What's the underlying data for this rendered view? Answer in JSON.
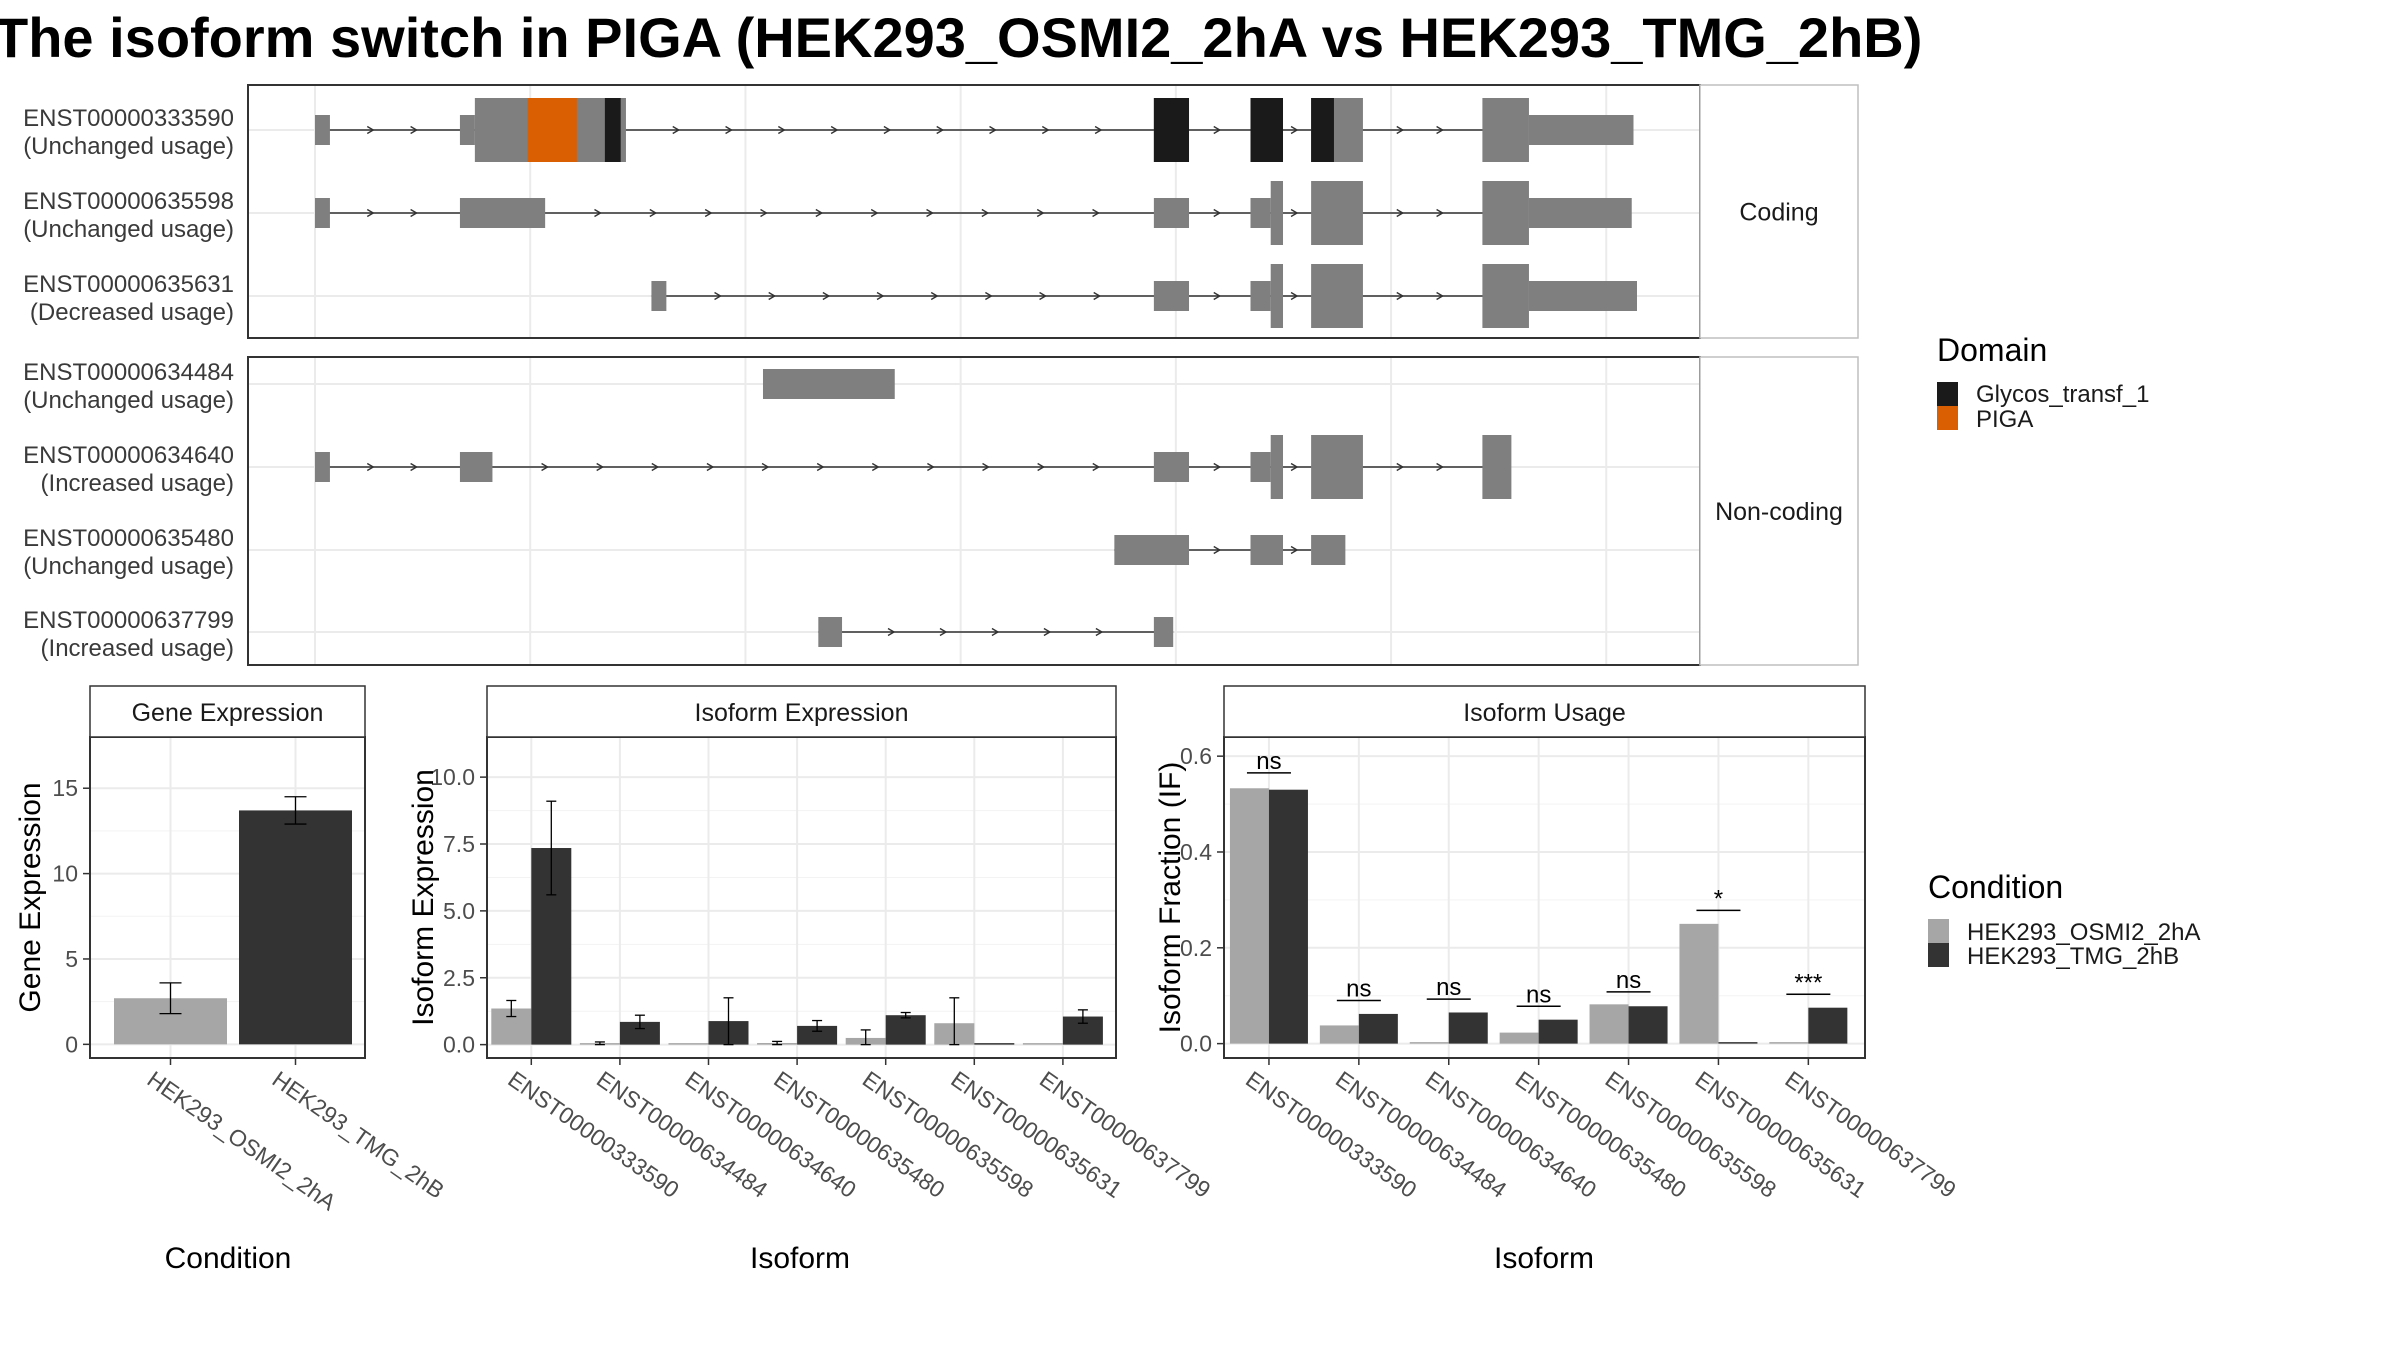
{
  "title": "The isoform switch in PIGA (HEK293_OSMI2_2hA vs HEK293_TMG_2hB)",
  "colors": {
    "exon": "#7f7f7f",
    "domain_glycos": "#1a1a1a",
    "domain_piga": "#d95f02",
    "cond_a": "#a6a6a6",
    "cond_b": "#333333"
  },
  "structure": {
    "panels": [
      {
        "strip": "Coding",
        "transcripts": [
          {
            "id": "ENST00000333590",
            "usage": "(Unchanged usage)",
            "intron": [
              0,
              1345
            ],
            "exons": [
              [
                0,
                17,
                "utr"
              ],
              [
                165,
                182,
                "utr"
              ],
              [
                182,
                354,
                "cds"
              ],
              [
                955,
                995,
                "cds"
              ],
              [
                1065,
                1102,
                "cds"
              ],
              [
                1134,
                1193,
                "cds"
              ],
              [
                1329,
                1382,
                "cds"
              ],
              [
                1382,
                1501,
                "utr"
              ]
            ],
            "domains": [
              [
                242,
                298,
                "PIGA"
              ],
              [
                330,
                348,
                "Glycos_transf_1"
              ],
              [
                955,
                995,
                "Glycos_transf_1"
              ],
              [
                1065,
                1102,
                "Glycos_transf_1"
              ],
              [
                1134,
                1160,
                "Glycos_transf_1"
              ]
            ]
          },
          {
            "id": "ENST00000635598",
            "usage": "(Unchanged usage)",
            "intron": [
              0,
              1345
            ],
            "exons": [
              [
                0,
                17,
                "utr"
              ],
              [
                165,
                262,
                "utr"
              ],
              [
                955,
                995,
                "utr"
              ],
              [
                1065,
                1088,
                "utr"
              ],
              [
                1088,
                1102,
                "cds"
              ],
              [
                1134,
                1193,
                "cds"
              ],
              [
                1329,
                1382,
                "cds"
              ],
              [
                1382,
                1499,
                "utr"
              ]
            ],
            "domains": []
          },
          {
            "id": "ENST00000635631",
            "usage": "(Decreased usage)",
            "intron": [
              383,
              1345
            ],
            "exons": [
              [
                383,
                400,
                "utr"
              ],
              [
                955,
                995,
                "utr"
              ],
              [
                1065,
                1088,
                "utr"
              ],
              [
                1088,
                1102,
                "cds"
              ],
              [
                1134,
                1193,
                "cds"
              ],
              [
                1329,
                1382,
                "cds"
              ],
              [
                1382,
                1505,
                "utr"
              ]
            ],
            "domains": []
          }
        ]
      },
      {
        "strip": "Non-coding",
        "transcripts": [
          {
            "id": "ENST00000634484",
            "usage": "(Unchanged usage)",
            "intron": null,
            "exons": [
              [
                510,
                660,
                "utr"
              ]
            ],
            "domains": []
          },
          {
            "id": "ENST00000634640",
            "usage": "(Increased usage)",
            "intron": [
              0,
              1345
            ],
            "exons": [
              [
                0,
                17,
                "utr"
              ],
              [
                165,
                202,
                "utr"
              ],
              [
                955,
                995,
                "utr"
              ],
              [
                1065,
                1088,
                "utr"
              ],
              [
                1088,
                1102,
                "cds"
              ],
              [
                1134,
                1193,
                "cds"
              ],
              [
                1329,
                1362,
                "cds"
              ]
            ],
            "domains": []
          },
          {
            "id": "ENST00000635480",
            "usage": "(Unchanged usage)",
            "intron": [
              910,
              1134
            ],
            "exons": [
              [
                910,
                995,
                "utr"
              ],
              [
                1065,
                1102,
                "utr"
              ],
              [
                1134,
                1173,
                "utr"
              ]
            ],
            "domains": []
          },
          {
            "id": "ENST00000637799",
            "usage": "(Increased usage)",
            "intron": [
              573,
              977
            ],
            "exons": [
              [
                573,
                600,
                "utr"
              ],
              [
                955,
                977,
                "utr"
              ]
            ],
            "domains": []
          }
        ]
      }
    ]
  },
  "legend_domain": {
    "title": "Domain",
    "items": [
      {
        "label": "Glycos_transf_1",
        "color": "#1a1a1a"
      },
      {
        "label": "PIGA",
        "color": "#d95f02"
      }
    ]
  },
  "legend_condition": {
    "title": "Condition",
    "items": [
      {
        "label": "HEK293_OSMI2_2hA",
        "color": "#a6a6a6"
      },
      {
        "label": "HEK293_TMG_2hB",
        "color": "#333333"
      }
    ]
  },
  "chart_data": [
    {
      "type": "bar",
      "title": "Gene Expression",
      "xlabel": "Condition",
      "ylabel": "Gene Expression",
      "categories": [
        "HEK293_OSMI2_2hA",
        "HEK293_TMG_2hB"
      ],
      "values": [
        2.7,
        13.7
      ],
      "errors": [
        [
          1.8,
          3.6
        ],
        [
          12.9,
          14.5
        ]
      ],
      "ylim": [
        -0.8,
        18
      ],
      "yticks": [
        0,
        5,
        10,
        15
      ]
    },
    {
      "type": "bar",
      "title": "Isoform Expression",
      "xlabel": "Isoform",
      "ylabel": "Isoform Expression",
      "categories": [
        "ENST00000333590",
        "ENST00000634484",
        "ENST00000634640",
        "ENST00000635480",
        "ENST00000635598",
        "ENST00000635631",
        "ENST00000637799"
      ],
      "series": [
        {
          "name": "HEK293_OSMI2_2hA",
          "values": [
            1.35,
            0.05,
            0.0,
            0.06,
            0.25,
            0.8,
            0.0
          ],
          "errors": [
            [
              1.05,
              1.65
            ],
            [
              0.0,
              0.1
            ],
            [
              0.0,
              0.0
            ],
            [
              0.0,
              0.12
            ],
            [
              0.0,
              0.55
            ],
            [
              0.0,
              1.75
            ],
            [
              0.0,
              0.0
            ]
          ]
        },
        {
          "name": "HEK293_TMG_2hB",
          "values": [
            7.35,
            0.85,
            0.88,
            0.7,
            1.1,
            0.0,
            1.05
          ],
          "errors": [
            [
              5.6,
              9.1
            ],
            [
              0.6,
              1.1
            ],
            [
              0.0,
              1.75
            ],
            [
              0.5,
              0.9
            ],
            [
              1.0,
              1.2
            ],
            [
              0.0,
              0.0
            ],
            [
              0.8,
              1.3
            ]
          ]
        }
      ],
      "ylim": [
        -0.5,
        11.5
      ],
      "yticks": [
        0.0,
        2.5,
        5.0,
        7.5,
        10.0
      ],
      "ytick_labels": [
        "0.0",
        "2.5",
        "5.0",
        "7.5",
        "10.0"
      ]
    },
    {
      "type": "bar",
      "title": "Isoform Usage",
      "xlabel": "Isoform",
      "ylabel": "Isoform Fraction (IF)",
      "categories": [
        "ENST00000333590",
        "ENST00000634484",
        "ENST00000634640",
        "ENST00000635480",
        "ENST00000635598",
        "ENST00000635631",
        "ENST00000637799"
      ],
      "series": [
        {
          "name": "HEK293_OSMI2_2hA",
          "values": [
            0.533,
            0.038,
            0.0,
            0.023,
            0.082,
            0.25,
            0.0
          ]
        },
        {
          "name": "HEK293_TMG_2hB",
          "values": [
            0.53,
            0.062,
            0.065,
            0.05,
            0.078,
            0.0,
            0.075
          ]
        }
      ],
      "significance": [
        {
          "label": "ns",
          "y": 0.565
        },
        {
          "label": "ns",
          "y": 0.09
        },
        {
          "label": "ns",
          "y": 0.093
        },
        {
          "label": "ns",
          "y": 0.078
        },
        {
          "label": "ns",
          "y": 0.108
        },
        {
          "label": "*",
          "y": 0.278
        },
        {
          "label": "***",
          "y": 0.103
        }
      ],
      "ylim": [
        -0.03,
        0.64
      ],
      "yticks": [
        0.0,
        0.2,
        0.4,
        0.6
      ],
      "ytick_labels": [
        "0.0",
        "0.2",
        "0.4",
        "0.6"
      ]
    }
  ]
}
